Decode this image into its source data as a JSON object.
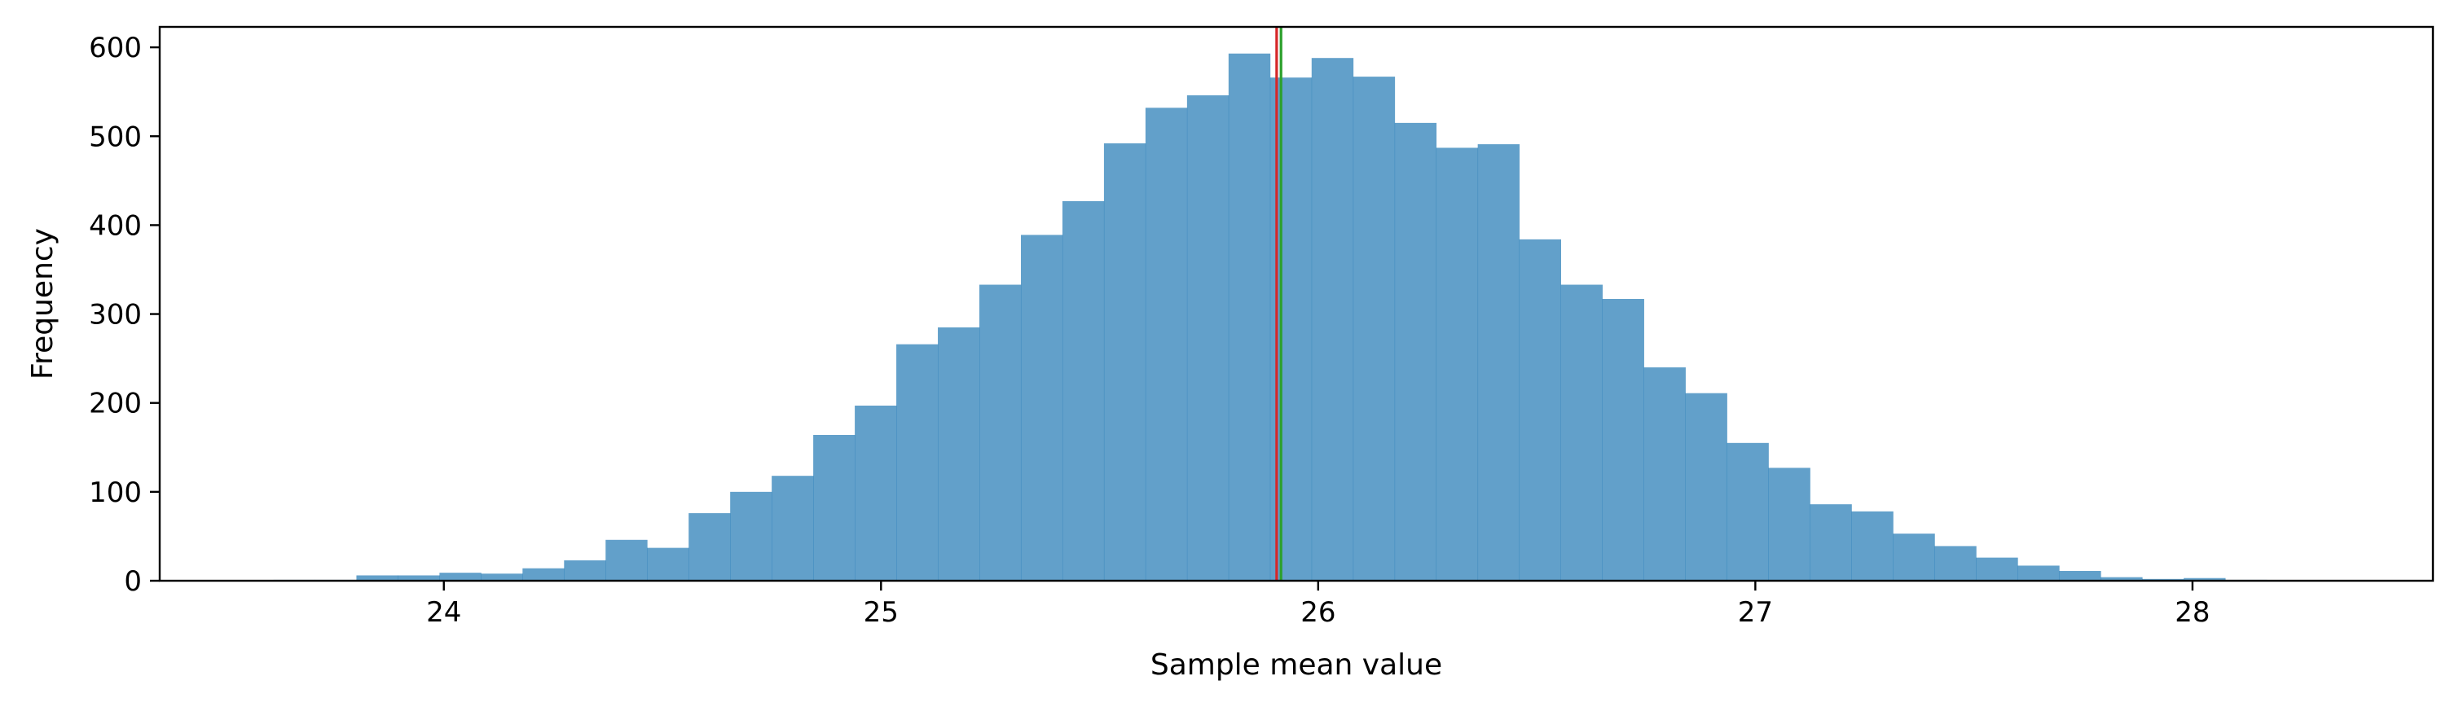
{
  "chart_data": {
    "type": "bar",
    "xlabel": "Sample mean value",
    "ylabel": "Frequency",
    "xlim": [
      23.35,
      28.55
    ],
    "ylim": [
      0,
      623
    ],
    "x_ticks": [
      24,
      25,
      26,
      27,
      28
    ],
    "y_ticks": [
      0,
      100,
      200,
      300,
      400,
      500,
      600
    ],
    "grid": false,
    "bin_edges": [
      23.61,
      23.705,
      23.8,
      23.895,
      23.99,
      24.085,
      24.18,
      24.275,
      24.37,
      24.465,
      24.56,
      24.655,
      24.75,
      24.845,
      24.94,
      25.035,
      25.13,
      25.225,
      25.32,
      25.415,
      25.51,
      25.605,
      25.7,
      25.795,
      25.89,
      25.985,
      26.08,
      26.175,
      26.27,
      26.365,
      26.46,
      26.555,
      26.65,
      26.745,
      26.84,
      26.935,
      27.03,
      27.125,
      27.22,
      27.315,
      27.41,
      27.505,
      27.6,
      27.695,
      27.79,
      27.885,
      27.98,
      28.075,
      28.17
    ],
    "values": [
      1,
      1,
      6,
      6,
      9,
      8,
      14,
      23,
      46,
      37,
      76,
      100,
      118,
      164,
      197,
      266,
      285,
      333,
      389,
      427,
      492,
      532,
      546,
      593,
      566,
      588,
      567,
      515,
      487,
      491,
      384,
      333,
      317,
      240,
      211,
      155,
      127,
      86,
      78,
      53,
      39,
      26,
      17,
      11,
      4,
      2,
      3,
      1
    ],
    "bar_color": "#1f77b4",
    "bar_alpha": 0.7,
    "vertical_lines": [
      {
        "x": 25.905,
        "color": "#d62728"
      },
      {
        "x": 25.915,
        "color": "#2ca02c"
      }
    ]
  }
}
